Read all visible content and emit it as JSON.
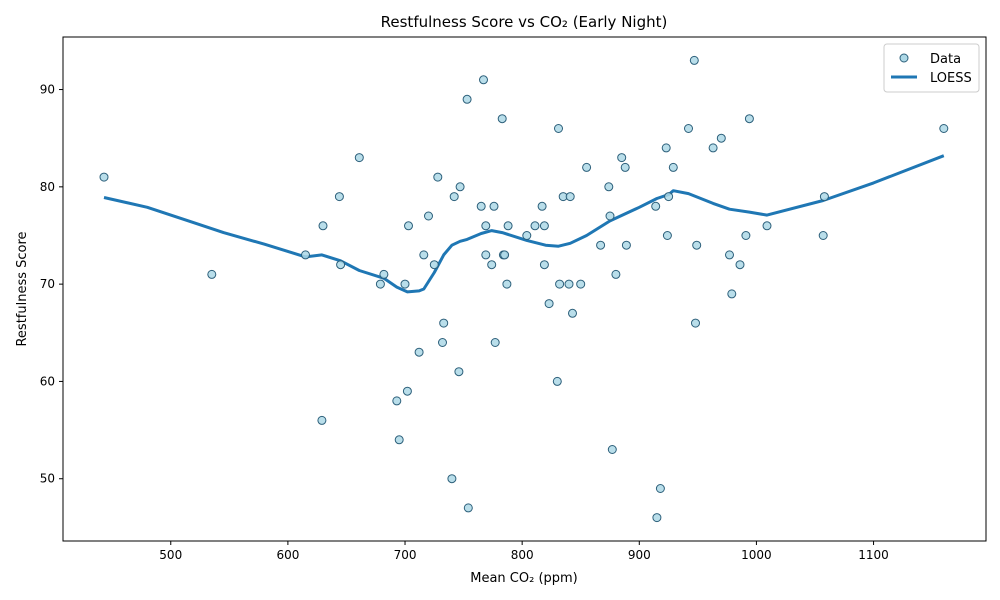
{
  "chart_data": {
    "type": "scatter",
    "title": "Restfulness Score vs CO₂ (Early Night)",
    "xlabel": "Mean CO₂ (ppm)",
    "ylabel": "Restfulness Score",
    "xlim": [
      408,
      1196
    ],
    "ylim": [
      43.6,
      95.4
    ],
    "xticks": [
      500,
      600,
      700,
      800,
      900,
      1000,
      1100
    ],
    "yticks": [
      50,
      60,
      70,
      80,
      90
    ],
    "legend": {
      "position": "top-right",
      "entries": [
        "Data",
        "LOESS"
      ]
    },
    "colors": {
      "point_fill": "#add8e6",
      "point_edge": "#2c5f7a",
      "line": "#1f77b4"
    },
    "series": [
      {
        "name": "Data",
        "type": "scatter",
        "points": [
          [
            443,
            81
          ],
          [
            535,
            71
          ],
          [
            615,
            73
          ],
          [
            629,
            56
          ],
          [
            630,
            76
          ],
          [
            644,
            79
          ],
          [
            645,
            72
          ],
          [
            661,
            83
          ],
          [
            679,
            70
          ],
          [
            682,
            71
          ],
          [
            693,
            58
          ],
          [
            695,
            54
          ],
          [
            700,
            70
          ],
          [
            702,
            59
          ],
          [
            703,
            76
          ],
          [
            712,
            63
          ],
          [
            716,
            73
          ],
          [
            720,
            77
          ],
          [
            725,
            72
          ],
          [
            728,
            81
          ],
          [
            732,
            64
          ],
          [
            733,
            66
          ],
          [
            740,
            50
          ],
          [
            742,
            79
          ],
          [
            746,
            61
          ],
          [
            747,
            80
          ],
          [
            753,
            89
          ],
          [
            754,
            47
          ],
          [
            765,
            78
          ],
          [
            767,
            91
          ],
          [
            769,
            73
          ],
          [
            769,
            76
          ],
          [
            774,
            72
          ],
          [
            776,
            78
          ],
          [
            777,
            64
          ],
          [
            783,
            87
          ],
          [
            784,
            73
          ],
          [
            785,
            73
          ],
          [
            787,
            70
          ],
          [
            788,
            76
          ],
          [
            804,
            75
          ],
          [
            811,
            76
          ],
          [
            817,
            78
          ],
          [
            819,
            76
          ],
          [
            819,
            72
          ],
          [
            823,
            68
          ],
          [
            830,
            60
          ],
          [
            831,
            86
          ],
          [
            832,
            70
          ],
          [
            835,
            79
          ],
          [
            840,
            70
          ],
          [
            841,
            79
          ],
          [
            843,
            67
          ],
          [
            850,
            70
          ],
          [
            855,
            82
          ],
          [
            867,
            74
          ],
          [
            874,
            80
          ],
          [
            875,
            77
          ],
          [
            877,
            53
          ],
          [
            880,
            71
          ],
          [
            885,
            83
          ],
          [
            888,
            82
          ],
          [
            889,
            74
          ],
          [
            914,
            78
          ],
          [
            915,
            46
          ],
          [
            918,
            49
          ],
          [
            923,
            84
          ],
          [
            924,
            75
          ],
          [
            925,
            79
          ],
          [
            929,
            82
          ],
          [
            942,
            86
          ],
          [
            947,
            93
          ],
          [
            948,
            66
          ],
          [
            949,
            74
          ],
          [
            963,
            84
          ],
          [
            970,
            85
          ],
          [
            977,
            73
          ],
          [
            979,
            69
          ],
          [
            986,
            72
          ],
          [
            991,
            75
          ],
          [
            994,
            87
          ],
          [
            1009,
            76
          ],
          [
            1057,
            75
          ],
          [
            1058,
            79
          ],
          [
            1160,
            86
          ]
        ]
      },
      {
        "name": "LOESS",
        "type": "line",
        "points": [
          [
            443,
            78.9
          ],
          [
            480,
            77.9
          ],
          [
            520,
            76.3
          ],
          [
            545,
            75.3
          ],
          [
            580,
            74.1
          ],
          [
            615,
            72.8
          ],
          [
            629,
            73.0
          ],
          [
            645,
            72.4
          ],
          [
            661,
            71.4
          ],
          [
            682,
            70.6
          ],
          [
            693,
            69.7
          ],
          [
            702,
            69.2
          ],
          [
            712,
            69.3
          ],
          [
            716,
            69.5
          ],
          [
            725,
            71.2
          ],
          [
            733,
            73.0
          ],
          [
            740,
            74.0
          ],
          [
            747,
            74.4
          ],
          [
            753,
            74.6
          ],
          [
            765,
            75.2
          ],
          [
            774,
            75.5
          ],
          [
            783,
            75.3
          ],
          [
            804,
            74.5
          ],
          [
            820,
            74.0
          ],
          [
            831,
            73.9
          ],
          [
            841,
            74.2
          ],
          [
            855,
            75.0
          ],
          [
            875,
            76.5
          ],
          [
            900,
            77.9
          ],
          [
            915,
            78.8
          ],
          [
            925,
            79.2
          ],
          [
            929,
            79.6
          ],
          [
            942,
            79.3
          ],
          [
            963,
            78.3
          ],
          [
            977,
            77.7
          ],
          [
            994,
            77.4
          ],
          [
            1009,
            77.1
          ],
          [
            1057,
            78.6
          ],
          [
            1100,
            80.4
          ],
          [
            1160,
            83.2
          ]
        ]
      }
    ]
  }
}
